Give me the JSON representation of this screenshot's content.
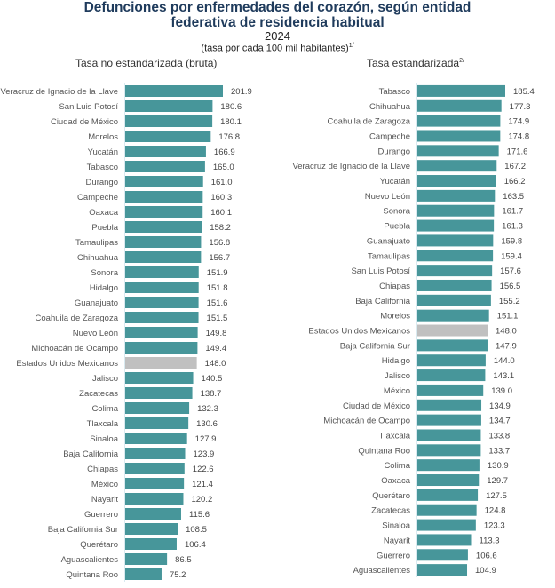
{
  "header": {
    "title_line1": "Defunciones por enfermedades del corazón, según entidad",
    "title_line2": "federativa de residencia habitual",
    "year": "2024",
    "units": "(tasa por cada 100 mil habitantes)",
    "units_note": "1/"
  },
  "colors": {
    "bar": "#47969a",
    "national_bar": "#c0c0c0",
    "axis": "#d9eaf0"
  },
  "chart_data": [
    {
      "type": "bar",
      "orientation": "horizontal",
      "title": "Tasa no estandarizada (bruta)",
      "title_note": "",
      "xlabel": "",
      "ylabel": "",
      "xlim": [
        0,
        201.9
      ],
      "grid": false,
      "highlight": "Estados Unidos Mexicanos",
      "categories": [
        "Veracruz de Ignacio de la Llave",
        "San Luis Potosí",
        "Ciudad de México",
        "Morelos",
        "Yucatán",
        "Tabasco",
        "Durango",
        "Campeche",
        "Oaxaca",
        "Puebla",
        "Tamaulipas",
        "Chihuahua",
        "Sonora",
        "Hidalgo",
        "Guanajuato",
        "Coahuila de Zaragoza",
        "Nuevo León",
        "Michoacán de Ocampo",
        "Estados Unidos Mexicanos",
        "Jalisco",
        "Zacatecas",
        "Colima",
        "Tlaxcala",
        "Sinaloa",
        "Baja California",
        "Chiapas",
        "México",
        "Nayarit",
        "Guerrero",
        "Baja California Sur",
        "Querétaro",
        "Aguascalientes",
        "Quintana Roo"
      ],
      "values": [
        201.9,
        180.6,
        180.1,
        176.8,
        166.9,
        165.0,
        161.0,
        160.3,
        160.1,
        158.2,
        156.8,
        156.7,
        151.9,
        151.8,
        151.6,
        151.5,
        149.8,
        149.4,
        148.0,
        140.5,
        138.7,
        132.3,
        130.6,
        127.9,
        123.9,
        122.6,
        121.4,
        120.2,
        115.6,
        108.5,
        106.4,
        86.5,
        75.2
      ]
    },
    {
      "type": "bar",
      "orientation": "horizontal",
      "title": "Tasa estandarizada",
      "title_note": "2/",
      "xlabel": "",
      "ylabel": "",
      "xlim": [
        0,
        185.4
      ],
      "grid": false,
      "highlight": "Estados Unidos Mexicanos",
      "categories": [
        "Tabasco",
        "Chihuahua",
        "Coahuila de Zaragoza",
        "Campeche",
        "Durango",
        "Veracruz de Ignacio de la Llave",
        "Yucatán",
        "Nuevo León",
        "Sonora",
        "Puebla",
        "Guanajuato",
        "Tamaulipas",
        "San Luis Potosí",
        "Chiapas",
        "Baja California",
        "Morelos",
        "Estados Unidos Mexicanos",
        "Baja California Sur",
        "Hidalgo",
        "Jalisco",
        "México",
        "Ciudad de México",
        "Michoacán de Ocampo",
        "Tlaxcala",
        "Quintana Roo",
        "Colima",
        "Oaxaca",
        "Querétaro",
        "Zacatecas",
        "Sinaloa",
        "Nayarit",
        "Guerrero",
        "Aguascalientes"
      ],
      "values": [
        185.4,
        177.3,
        174.9,
        174.8,
        171.6,
        167.2,
        166.2,
        163.5,
        161.7,
        161.3,
        159.8,
        159.4,
        157.6,
        156.5,
        155.2,
        151.1,
        148.0,
        147.9,
        144.0,
        143.1,
        139.0,
        134.9,
        134.7,
        133.8,
        133.7,
        130.9,
        129.7,
        127.5,
        124.8,
        123.3,
        113.3,
        106.6,
        104.9
      ]
    }
  ]
}
